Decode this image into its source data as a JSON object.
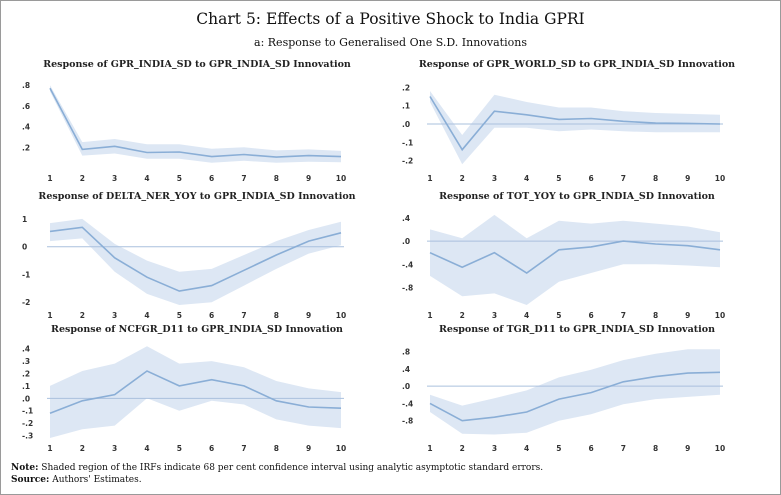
{
  "title": "Chart 5: Effects of a Positive Shock to India GPRI",
  "subtitle": "a: Response to Generalised One S.D. Innovations",
  "colors": {
    "line": "#8aaed6",
    "band": "#dde7f4",
    "zero": "#aac0de",
    "text": "#222222"
  },
  "chart_data": [
    {
      "type": "area",
      "title": "Response of GPR_INDIA_SD to GPR_INDIA_SD Innovation",
      "x": [
        1,
        2,
        3,
        4,
        5,
        6,
        7,
        8,
        9,
        10
      ],
      "xtick_labels": [
        "1",
        "2",
        "3",
        "4",
        "5",
        "6",
        "7",
        "8",
        "9",
        "10"
      ],
      "series": [
        {
          "name": "response",
          "values": [
            0.77,
            0.18,
            0.21,
            0.15,
            0.155,
            0.11,
            0.13,
            0.105,
            0.12,
            0.11
          ]
        },
        {
          "name": "upper",
          "values": [
            0.8,
            0.25,
            0.28,
            0.23,
            0.23,
            0.185,
            0.2,
            0.17,
            0.18,
            0.165
          ]
        },
        {
          "name": "lower",
          "values": [
            0.74,
            0.12,
            0.14,
            0.09,
            0.09,
            0.05,
            0.07,
            0.05,
            0.06,
            0.055
          ]
        }
      ],
      "ylim": [
        0.0,
        0.85
      ],
      "yticks": [
        0.2,
        0.4,
        0.6,
        0.8
      ],
      "ytick_labels": [
        ".2",
        ".4",
        ".6",
        ".8"
      ],
      "zero_line": false
    },
    {
      "type": "area",
      "title": "Response of GPR_WORLD_SD to GPR_INDIA_SD Innovation",
      "x": [
        1,
        2,
        3,
        4,
        5,
        6,
        7,
        8,
        9,
        10
      ],
      "xtick_labels": [
        "1",
        "2",
        "3",
        "4",
        "5",
        "6",
        "7",
        "8",
        "9",
        "10"
      ],
      "series": [
        {
          "name": "response",
          "values": [
            0.15,
            -0.14,
            0.07,
            0.05,
            0.025,
            0.03,
            0.015,
            0.005,
            0.003,
            0.0
          ]
        },
        {
          "name": "upper",
          "values": [
            0.18,
            -0.06,
            0.16,
            0.12,
            0.09,
            0.09,
            0.07,
            0.06,
            0.055,
            0.05
          ]
        },
        {
          "name": "lower",
          "values": [
            0.12,
            -0.22,
            -0.02,
            -0.02,
            -0.04,
            -0.03,
            -0.04,
            -0.045,
            -0.045,
            -0.045
          ]
        }
      ],
      "ylim": [
        -0.24,
        0.24
      ],
      "yticks": [
        -0.2,
        -0.1,
        0.0,
        0.1,
        0.2
      ],
      "ytick_labels": [
        "-.2",
        "-.1",
        ".0",
        ".1",
        ".2"
      ],
      "zero_line": true
    },
    {
      "type": "area",
      "title": "Response of DELTA_NER_YOY to GPR_INDIA_SD Innovation",
      "x": [
        1,
        2,
        3,
        4,
        5,
        6,
        7,
        8,
        9,
        10
      ],
      "xtick_labels": [
        "1",
        "2",
        "3",
        "4",
        "5",
        "6",
        "7",
        "8",
        "9",
        "10"
      ],
      "series": [
        {
          "name": "response",
          "values": [
            0.55,
            0.7,
            -0.4,
            -1.1,
            -1.6,
            -1.4,
            -0.85,
            -0.3,
            0.2,
            0.5
          ]
        },
        {
          "name": "upper",
          "values": [
            0.85,
            1.0,
            0.1,
            -0.5,
            -0.9,
            -0.8,
            -0.3,
            0.2,
            0.6,
            0.9
          ]
        },
        {
          "name": "lower",
          "values": [
            0.2,
            0.3,
            -0.9,
            -1.7,
            -2.1,
            -2.0,
            -1.4,
            -0.8,
            -0.25,
            0.05
          ]
        }
      ],
      "ylim": [
        -2.1,
        1.25
      ],
      "yticks": [
        -2,
        -1,
        0,
        1
      ],
      "ytick_labels": [
        "-2",
        "-1",
        "0",
        "1"
      ],
      "zero_line": true
    },
    {
      "type": "area",
      "title": "Response of TOT_YOY to GPR_INDIA_SD Innovation",
      "x": [
        1,
        2,
        3,
        4,
        5,
        6,
        7,
        8,
        9,
        10
      ],
      "xtick_labels": [
        "1",
        "2",
        "3",
        "4",
        "5",
        "6",
        "7",
        "8",
        "9",
        "10"
      ],
      "series": [
        {
          "name": "response",
          "values": [
            -0.2,
            -0.45,
            -0.2,
            -0.55,
            -0.15,
            -0.1,
            0.0,
            -0.05,
            -0.08,
            -0.15
          ]
        },
        {
          "name": "upper",
          "values": [
            0.2,
            0.05,
            0.45,
            0.05,
            0.35,
            0.3,
            0.35,
            0.3,
            0.25,
            0.15
          ]
        },
        {
          "name": "lower",
          "values": [
            -0.6,
            -0.95,
            -0.9,
            -1.1,
            -0.7,
            -0.55,
            -0.4,
            -0.4,
            -0.42,
            -0.45
          ]
        }
      ],
      "ylim": [
        -1.1,
        0.5
      ],
      "yticks": [
        -0.8,
        -0.4,
        0.0,
        0.4
      ],
      "ytick_labels": [
        "-.8",
        "-.4",
        ".0",
        ".4"
      ],
      "zero_line": true
    },
    {
      "type": "area",
      "title": "Response of NCFGR_D11 to GPR_INDIA_SD Innovation",
      "x": [
        1,
        2,
        3,
        4,
        5,
        6,
        7,
        8,
        9,
        10
      ],
      "xtick_labels": [
        "1",
        "2",
        "3",
        "4",
        "5",
        "6",
        "7",
        "8",
        "9",
        "10"
      ],
      "series": [
        {
          "name": "response",
          "values": [
            -0.12,
            -0.02,
            0.03,
            0.22,
            0.1,
            0.15,
            0.1,
            -0.02,
            -0.07,
            -0.08
          ]
        },
        {
          "name": "upper",
          "values": [
            0.1,
            0.22,
            0.28,
            0.42,
            0.28,
            0.3,
            0.25,
            0.14,
            0.08,
            0.05
          ]
        },
        {
          "name": "lower",
          "values": [
            -0.32,
            -0.25,
            -0.22,
            0.0,
            -0.1,
            -0.02,
            -0.05,
            -0.17,
            -0.22,
            -0.24
          ]
        }
      ],
      "ylim": [
        -0.32,
        0.43
      ],
      "yticks": [
        -0.3,
        -0.2,
        -0.1,
        0.0,
        0.1,
        0.2,
        0.3,
        0.4
      ],
      "ytick_labels": [
        "-.3",
        "-.2",
        "-.1",
        ".0",
        ".1",
        ".2",
        ".3",
        ".4"
      ],
      "zero_line": true
    },
    {
      "type": "area",
      "title": "Response of TGR_D11 to GPR_INDIA_SD Innovation",
      "x": [
        1,
        2,
        3,
        4,
        5,
        6,
        7,
        8,
        9,
        10
      ],
      "xtick_labels": [
        "1",
        "2",
        "3",
        "4",
        "5",
        "6",
        "7",
        "8",
        "9",
        "10"
      ],
      "series": [
        {
          "name": "response",
          "values": [
            -0.4,
            -0.8,
            -0.72,
            -0.6,
            -0.3,
            -0.15,
            0.1,
            0.22,
            0.3,
            0.32
          ]
        },
        {
          "name": "upper",
          "values": [
            -0.2,
            -0.45,
            -0.28,
            -0.1,
            0.2,
            0.38,
            0.6,
            0.75,
            0.85,
            0.85
          ]
        },
        {
          "name": "lower",
          "values": [
            -0.6,
            -1.1,
            -1.12,
            -1.08,
            -0.8,
            -0.65,
            -0.42,
            -0.3,
            -0.25,
            -0.2
          ]
        }
      ],
      "ylim": [
        -1.2,
        0.95
      ],
      "yticks": [
        -0.8,
        -0.4,
        0.0,
        0.4,
        0.8
      ],
      "ytick_labels": [
        "-.8",
        "-.4",
        ".0",
        ".4",
        ".8"
      ],
      "zero_line": true
    }
  ],
  "footer": {
    "note_label": "Note:",
    "note_text": " Shaded region of the IRFs indicate 68 per cent confidence interval using analytic asymptotic standard errors.",
    "source_label": "Source:",
    "source_text": " Authors' Estimates."
  }
}
